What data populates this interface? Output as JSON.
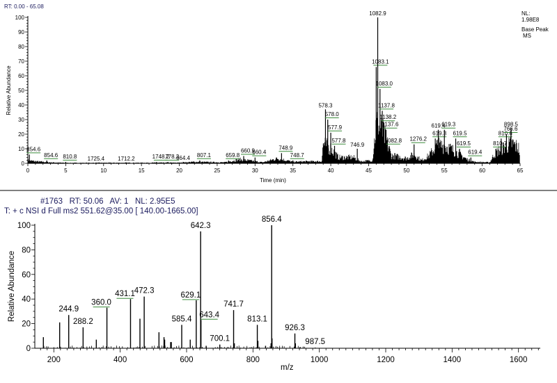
{
  "chart_data": [
    {
      "type": "line",
      "header": "RT: 0.00 - 65.08",
      "xlabel": "Time (min)",
      "ylabel": "Relative Abundance",
      "xlim": [
        0,
        65
      ],
      "ylim": [
        0,
        100
      ],
      "xticks": [
        0,
        5,
        10,
        15,
        20,
        25,
        30,
        35,
        40,
        45,
        50,
        55,
        60,
        65
      ],
      "yticks": [
        0,
        10,
        20,
        30,
        40,
        50,
        60,
        70,
        80,
        90,
        100
      ],
      "info": [
        "NL:",
        "1.98E8",
        "Base Peak",
        "MS"
      ],
      "grid": false,
      "colors": {
        "trace": "#000000",
        "label_marker": "#3a8a3a",
        "header": "#1b1b5e"
      },
      "peaks": [
        {
          "t": 0.2,
          "y": 6,
          "label": "854.6",
          "marker": true
        },
        {
          "t": 2.5,
          "y": 2,
          "label": "854.6",
          "marker": true
        },
        {
          "t": 5.0,
          "y": 1,
          "label": "810.8",
          "marker": true
        },
        {
          "t": 9.0,
          "y": 0.5,
          "label": "1725.4",
          "marker": false
        },
        {
          "t": 13.0,
          "y": 0.5,
          "label": "1712.2",
          "marker": false
        },
        {
          "t": 17.0,
          "y": 1,
          "label": "1748.2",
          "marker": true
        },
        {
          "t": 18.5,
          "y": 1,
          "label": "778.3",
          "marker": true
        },
        {
          "t": 20.5,
          "y": 1,
          "label": "664.4",
          "marker": false
        },
        {
          "t": 22.7,
          "y": 2,
          "label": "807.1",
          "marker": true
        },
        {
          "t": 26.5,
          "y": 2,
          "label": "659.8",
          "marker": true
        },
        {
          "t": 28.5,
          "y": 5,
          "label": "660.9",
          "marker": true
        },
        {
          "t": 30.0,
          "y": 4,
          "label": "660.4",
          "marker": true
        },
        {
          "t": 33.5,
          "y": 7,
          "label": "748.9",
          "marker": true
        },
        {
          "t": 35.0,
          "y": 2,
          "label": "748.7",
          "marker": true
        },
        {
          "t": 39.3,
          "y": 37,
          "label": "578.3",
          "marker": false
        },
        {
          "t": 39.6,
          "y": 30,
          "label": "578.0",
          "marker": true
        },
        {
          "t": 40.0,
          "y": 21,
          "label": "577.9",
          "marker": true
        },
        {
          "t": 40.5,
          "y": 12,
          "label": "577.8",
          "marker": true
        },
        {
          "t": 43.5,
          "y": 10,
          "label": "746.9",
          "marker": false
        },
        {
          "t": 46.0,
          "y": 66,
          "label": "1083.1",
          "marker": true
        },
        {
          "t": 46.2,
          "y": 100,
          "label": "1082.9",
          "marker": false
        },
        {
          "t": 46.5,
          "y": 51,
          "label": "1083.0",
          "marker": true
        },
        {
          "t": 46.8,
          "y": 36,
          "label": "1137.8",
          "marker": true
        },
        {
          "t": 47.0,
          "y": 28,
          "label": "1138.2",
          "marker": true
        },
        {
          "t": 47.3,
          "y": 23,
          "label": "1137.6",
          "marker": true
        },
        {
          "t": 47.7,
          "y": 12,
          "label": "1082.8",
          "marker": true
        },
        {
          "t": 51.0,
          "y": 13,
          "label": "1276.2",
          "marker": true
        },
        {
          "t": 53.8,
          "y": 17,
          "label": "619.3",
          "marker": true
        },
        {
          "t": 54.2,
          "y": 23,
          "label": "619.4",
          "marker": false
        },
        {
          "t": 55.0,
          "y": 23,
          "label": "619.3",
          "marker": true
        },
        {
          "t": 56.5,
          "y": 17,
          "label": "619.5",
          "marker": true
        },
        {
          "t": 57.0,
          "y": 10,
          "label": "619.5",
          "marker": true
        },
        {
          "t": 58.5,
          "y": 4,
          "label": "619.4",
          "marker": true
        },
        {
          "t": 61.8,
          "y": 10,
          "label": "810.7",
          "marker": true
        },
        {
          "t": 62.5,
          "y": 17,
          "label": "810.6",
          "marker": true
        },
        {
          "t": 63.2,
          "y": 20,
          "label": "766.6",
          "marker": true
        },
        {
          "t": 63.8,
          "y": 24,
          "label": "898.5",
          "marker": false
        }
      ],
      "background_profile": [
        [
          0,
          3
        ],
        [
          1,
          2
        ],
        [
          3,
          1
        ],
        [
          5,
          0.5
        ],
        [
          20,
          0.7
        ],
        [
          22,
          1.5
        ],
        [
          26,
          1
        ],
        [
          28,
          4
        ],
        [
          29,
          3
        ],
        [
          31,
          1
        ],
        [
          33,
          5
        ],
        [
          35,
          1.5
        ],
        [
          37,
          2
        ],
        [
          38.8,
          2
        ],
        [
          39,
          20
        ],
        [
          40,
          15
        ],
        [
          41,
          6
        ],
        [
          43,
          6
        ],
        [
          44,
          2
        ],
        [
          45.5,
          3
        ],
        [
          46,
          40
        ],
        [
          47,
          30
        ],
        [
          48,
          8
        ],
        [
          50,
          5
        ],
        [
          51,
          9
        ],
        [
          52,
          3
        ],
        [
          53,
          8
        ],
        [
          54,
          18
        ],
        [
          55,
          18
        ],
        [
          56,
          14
        ],
        [
          57,
          9
        ],
        [
          58,
          4
        ],
        [
          59,
          1.5
        ],
        [
          61,
          1
        ],
        [
          61.5,
          8
        ],
        [
          62,
          12
        ],
        [
          63,
          17
        ],
        [
          64,
          20
        ],
        [
          64.9,
          15
        ],
        [
          65,
          0
        ]
      ]
    },
    {
      "type": "bar",
      "header_line1": "#1763   RT: 50.06   AV: 1   NL: 2.95E5",
      "header_line2": "T: + c NSI d Full ms2 551.62@35.00 [ 140.00-1665.00]",
      "xlabel": "m/z",
      "ylabel": "Relative Abundance",
      "xlim": [
        140,
        1665
      ],
      "ylim": [
        0,
        100
      ],
      "xticks": [
        200,
        400,
        600,
        800,
        1000,
        1200,
        1400,
        1600
      ],
      "yticks": [
        0,
        20,
        40,
        60,
        80,
        100
      ],
      "grid": false,
      "peaks": [
        {
          "mz": 168.5,
          "y": 9
        },
        {
          "mz": 217.6,
          "y": 21
        },
        {
          "mz": 244.9,
          "y": 27,
          "label": "244.9"
        },
        {
          "mz": 288.2,
          "y": 17,
          "label": "288.2"
        },
        {
          "mz": 328,
          "y": 7
        },
        {
          "mz": 360.0,
          "y": 33,
          "label": "360.0",
          "marker": true
        },
        {
          "mz": 431.1,
          "y": 40,
          "label": "431.1",
          "marker": true
        },
        {
          "mz": 459.5,
          "y": 24
        },
        {
          "mz": 472.3,
          "y": 42,
          "label": "472.3"
        },
        {
          "mz": 516.8,
          "y": 13
        },
        {
          "mz": 532,
          "y": 9
        },
        {
          "mz": 534,
          "y": 7
        },
        {
          "mz": 552,
          "y": 5
        },
        {
          "mz": 554,
          "y": 5
        },
        {
          "mz": 585.4,
          "y": 19,
          "label": "585.4"
        },
        {
          "mz": 611,
          "y": 7
        },
        {
          "mz": 629.1,
          "y": 39,
          "label": "629.1",
          "marker": true
        },
        {
          "mz": 642.3,
          "y": 95,
          "label": "642.3"
        },
        {
          "mz": 643.4,
          "y": 23,
          "label": "643.4",
          "marker": true
        },
        {
          "mz": 659,
          "y": 2
        },
        {
          "mz": 700.1,
          "y": 3,
          "label": "700.1"
        },
        {
          "mz": 741.7,
          "y": 31,
          "label": "741.7"
        },
        {
          "mz": 744,
          "y": 4
        },
        {
          "mz": 813.1,
          "y": 19,
          "label": "813.1"
        },
        {
          "mz": 815,
          "y": 6
        },
        {
          "mz": 838,
          "y": 2
        },
        {
          "mz": 854.5,
          "y": 4
        },
        {
          "mz": 856.4,
          "y": 100,
          "label": "856.4"
        },
        {
          "mz": 857.5,
          "y": 8
        },
        {
          "mz": 926.3,
          "y": 12,
          "label": "926.3"
        },
        {
          "mz": 928,
          "y": 4
        },
        {
          "mz": 942,
          "y": 1
        },
        {
          "mz": 987.5,
          "y": 0.5,
          "label": "987.5"
        }
      ]
    }
  ]
}
